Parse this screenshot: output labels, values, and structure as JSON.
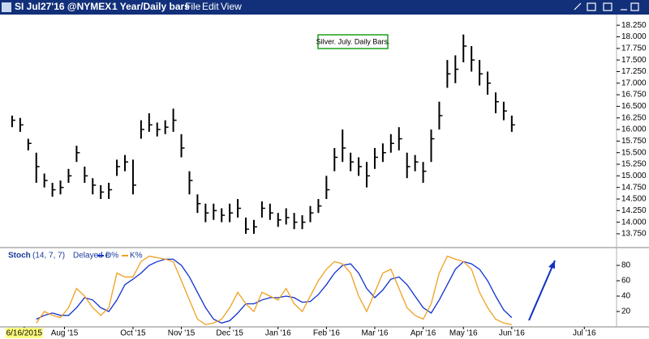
{
  "window": {
    "title": "SI Jul27'16 @NYMEX",
    "subtitle": "1 Year/Daily bars",
    "menu": [
      "File",
      "Edit",
      "View"
    ]
  },
  "chart_data": [
    {
      "type": "hlc",
      "annotation": "Silver. July. Daily Bars.",
      "color": "#000000",
      "xlim": [
        -1,
        75
      ],
      "ylim": [
        13.47,
        18.48
      ],
      "high": [
        16.3,
        16.25,
        15.8,
        15.5,
        15.05,
        14.85,
        14.9,
        15.15,
        15.65,
        15.2,
        14.95,
        14.8,
        14.85,
        15.35,
        15.45,
        15.35,
        16.2,
        16.35,
        16.15,
        16.2,
        16.45,
        15.9,
        15.1,
        14.6,
        14.4,
        14.4,
        14.3,
        14.4,
        14.5,
        14.1,
        14.05,
        14.45,
        14.4,
        14.2,
        14.3,
        14.2,
        14.15,
        14.35,
        14.5,
        15.0,
        15.6,
        16.0,
        15.5,
        15.4,
        15.3,
        15.6,
        15.7,
        15.9,
        16.05,
        15.5,
        15.45,
        15.3,
        16.0,
        16.6,
        17.5,
        17.6,
        18.05,
        17.8,
        17.5,
        17.25,
        16.8,
        16.6,
        16.3
      ],
      "low": [
        16.05,
        15.95,
        15.55,
        14.85,
        14.75,
        14.55,
        14.6,
        14.85,
        15.3,
        14.85,
        14.6,
        14.5,
        14.5,
        15.0,
        15.1,
        14.6,
        15.8,
        15.95,
        15.85,
        15.9,
        15.95,
        15.4,
        14.6,
        14.2,
        14.0,
        14.05,
        14.0,
        14.0,
        14.1,
        13.75,
        13.75,
        14.1,
        14.05,
        13.9,
        13.95,
        13.85,
        13.85,
        14.0,
        14.2,
        14.5,
        15.1,
        15.3,
        15.1,
        15.0,
        14.75,
        15.15,
        15.3,
        15.5,
        15.55,
        14.95,
        15.1,
        14.85,
        15.3,
        16.0,
        16.9,
        17.0,
        17.45,
        17.25,
        16.95,
        16.75,
        16.35,
        16.2,
        15.95
      ],
      "close": [
        16.2,
        16.1,
        15.7,
        15.2,
        14.9,
        14.7,
        14.75,
        15.0,
        15.5,
        15.0,
        14.8,
        14.65,
        14.7,
        15.2,
        15.3,
        14.8,
        16.0,
        16.1,
        16.0,
        16.05,
        16.2,
        15.6,
        14.9,
        14.4,
        14.2,
        14.25,
        14.15,
        14.2,
        14.3,
        13.85,
        13.9,
        14.3,
        14.2,
        14.05,
        14.1,
        14.0,
        14.0,
        14.2,
        14.35,
        14.7,
        15.4,
        15.6,
        15.3,
        15.2,
        15.0,
        15.4,
        15.5,
        15.7,
        15.8,
        15.2,
        15.3,
        15.1,
        15.8,
        16.3,
        17.2,
        17.3,
        17.8,
        17.5,
        17.2,
        17.0,
        16.6,
        16.4,
        16.1
      ],
      "yticks": [
        {
          "value": 13.75,
          "label": "13.750"
        },
        {
          "value": 14.0,
          "label": "14.000"
        },
        {
          "value": 14.25,
          "label": "14.250"
        },
        {
          "value": 14.5,
          "label": "14.500"
        },
        {
          "value": 14.75,
          "label": "14.750"
        },
        {
          "value": 15.0,
          "label": "15.000"
        },
        {
          "value": 15.25,
          "label": "15.250"
        },
        {
          "value": 15.5,
          "label": "15.500"
        },
        {
          "value": 15.75,
          "label": "15.750"
        },
        {
          "value": 16.0,
          "label": "16.000"
        },
        {
          "value": 16.25,
          "label": "16.250"
        },
        {
          "value": 16.5,
          "label": "16.500"
        },
        {
          "value": 16.75,
          "label": "16.750"
        },
        {
          "value": 17.0,
          "label": "17.000"
        },
        {
          "value": 17.25,
          "label": "17.250"
        },
        {
          "value": 17.5,
          "label": "17.500"
        },
        {
          "value": 17.75,
          "label": "17.750"
        },
        {
          "value": 18.0,
          "label": "18.000"
        },
        {
          "value": 18.25,
          "label": "18.250"
        }
      ]
    },
    {
      "type": "line",
      "title": "Stoch",
      "params": "(14, 7, 7)",
      "mode": "Delayed e",
      "xlim": [
        -1,
        75
      ],
      "ylim": [
        0,
        100
      ],
      "yticks": [
        20,
        40,
        60,
        80
      ],
      "xticks": [
        {
          "value": 1.5,
          "label": "6/16/2015"
        },
        {
          "value": 6.5,
          "label": "Aug '15"
        },
        {
          "value": 15,
          "label": "Oct '15"
        },
        {
          "value": 21,
          "label": "Nov '15"
        },
        {
          "value": 27,
          "label": "Dec '15"
        },
        {
          "value": 33,
          "label": "Jan '16"
        },
        {
          "value": 39,
          "label": "Feb '16"
        },
        {
          "value": 45,
          "label": "Mar '16"
        },
        {
          "value": 51,
          "label": "Apr '16"
        },
        {
          "value": 56,
          "label": "May '16"
        },
        {
          "value": 62,
          "label": "Jun '16"
        },
        {
          "value": 71,
          "label": "Jul '16"
        }
      ],
      "series": [
        {
          "name": "D%",
          "color": "#1030d0",
          "values": [
            null,
            null,
            null,
            10,
            15,
            18,
            15,
            15,
            25,
            38,
            35,
            25,
            20,
            35,
            55,
            62,
            70,
            80,
            85,
            88,
            88,
            80,
            65,
            45,
            25,
            10,
            5,
            8,
            18,
            30,
            30,
            35,
            38,
            38,
            40,
            38,
            32,
            33,
            42,
            55,
            70,
            80,
            82,
            70,
            50,
            38,
            48,
            62,
            65,
            55,
            40,
            25,
            18,
            35,
            55,
            75,
            85,
            82,
            75,
            60,
            40,
            22,
            12
          ]
        },
        {
          "name": "K%",
          "color": "#f0a020",
          "values": [
            null,
            null,
            null,
            5,
            20,
            15,
            12,
            25,
            50,
            40,
            25,
            15,
            25,
            70,
            65,
            65,
            85,
            92,
            90,
            88,
            85,
            60,
            35,
            10,
            3,
            5,
            10,
            25,
            45,
            30,
            20,
            45,
            40,
            35,
            50,
            30,
            20,
            40,
            60,
            75,
            85,
            82,
            70,
            40,
            20,
            45,
            70,
            75,
            50,
            25,
            15,
            10,
            30,
            70,
            92,
            88,
            85,
            75,
            45,
            25,
            10,
            5,
            3
          ]
        }
      ]
    }
  ]
}
